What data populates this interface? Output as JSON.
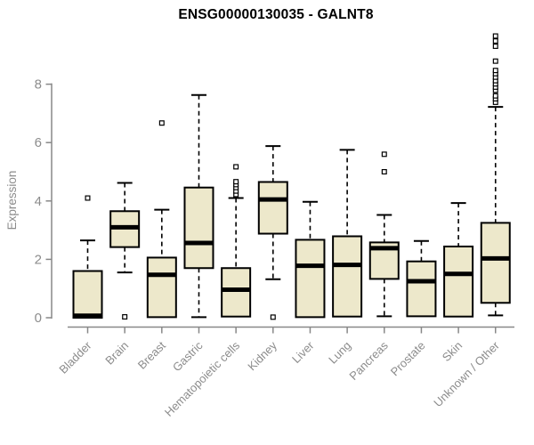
{
  "chart_data": {
    "type": "box",
    "title": "ENSG00000130035 - GALNT8",
    "xlabel": "",
    "ylabel": "Expression",
    "ylim": [
      0,
      8
    ],
    "yticks": [
      0,
      2,
      4,
      6,
      8
    ],
    "grid": false,
    "legend": "none",
    "categories": [
      "Bladder",
      "Brain",
      "Breast",
      "Gastric",
      "Hematopoietic cells",
      "Kidney",
      "Liver",
      "Lung",
      "Pancreas",
      "Prostate",
      "Skin",
      "Unknown / Other"
    ],
    "series": [
      {
        "name": "Bladder",
        "whisker_low": 0,
        "q1": 0,
        "median": 0.07,
        "q3": 1.6,
        "whisker_high": 2.65,
        "outliers": [
          4.1
        ]
      },
      {
        "name": "Brain",
        "whisker_low": 1.55,
        "q1": 2.42,
        "median": 3.1,
        "q3": 3.65,
        "whisker_high": 4.62,
        "outliers": [
          0.03
        ]
      },
      {
        "name": "Breast",
        "whisker_low": 0.02,
        "q1": 0.02,
        "median": 1.47,
        "q3": 2.06,
        "whisker_high": 3.7,
        "outliers": [
          6.67
        ]
      },
      {
        "name": "Gastric",
        "whisker_low": 0.02,
        "q1": 1.7,
        "median": 2.56,
        "q3": 4.46,
        "whisker_high": 7.63,
        "outliers": []
      },
      {
        "name": "Hematopoietic cells",
        "whisker_low": 0.04,
        "q1": 0.04,
        "median": 0.96,
        "q3": 1.7,
        "whisker_high": 4.1,
        "outliers": [
          4.22,
          4.34,
          4.46,
          4.56,
          4.66,
          5.17
        ]
      },
      {
        "name": "Kidney",
        "whisker_low": 1.32,
        "q1": 2.88,
        "median": 4.05,
        "q3": 4.65,
        "whisker_high": 5.88,
        "outliers": [
          0.02
        ]
      },
      {
        "name": "Liver",
        "whisker_low": 0.02,
        "q1": 0.02,
        "median": 1.78,
        "q3": 2.67,
        "whisker_high": 3.97,
        "outliers": []
      },
      {
        "name": "Lung",
        "whisker_low": 0.04,
        "q1": 0.04,
        "median": 1.81,
        "q3": 2.79,
        "whisker_high": 5.75,
        "outliers": []
      },
      {
        "name": "Pancreas",
        "whisker_low": 0.05,
        "q1": 1.33,
        "median": 2.38,
        "q3": 2.58,
        "whisker_high": 3.52,
        "outliers": [
          5.0,
          5.6
        ]
      },
      {
        "name": "Prostate",
        "whisker_low": 0.05,
        "q1": 0.05,
        "median": 1.25,
        "q3": 1.93,
        "whisker_high": 2.63,
        "outliers": []
      },
      {
        "name": "Skin",
        "whisker_low": 0.04,
        "q1": 0.04,
        "median": 1.5,
        "q3": 2.44,
        "whisker_high": 3.93,
        "outliers": []
      },
      {
        "name": "Unknown / Other",
        "whisker_low": 0.08,
        "q1": 0.51,
        "median": 2.03,
        "q3": 3.25,
        "whisker_high": 7.22,
        "outliers": [
          7.38,
          7.5,
          7.6,
          7.79,
          7.9,
          8.01,
          8.12,
          8.24,
          8.36,
          8.47,
          8.79,
          9.3,
          9.48,
          9.65
        ]
      }
    ],
    "colors": {
      "box_fill": "#EDE8CB",
      "box_stroke": "#000000",
      "median": "#000000",
      "whisker": "#000000",
      "axis": "#888888",
      "tick_label": "#8c8c8c",
      "title": "#000000",
      "background": "#ffffff"
    }
  }
}
